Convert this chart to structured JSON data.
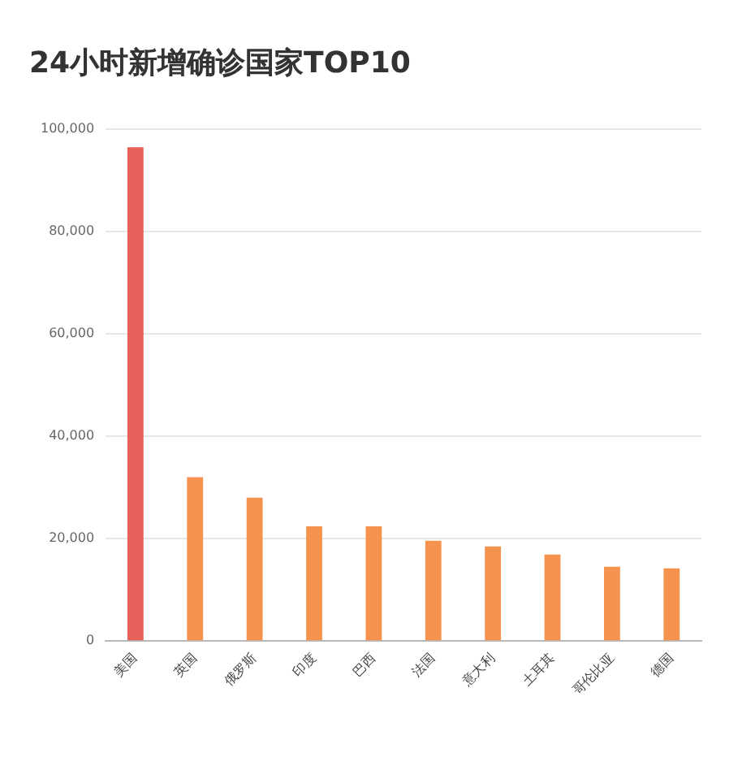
{
  "chart_data": {
    "type": "bar",
    "title": "24小时新增确诊国家TOP10",
    "categories": [
      "美国",
      "英国",
      "俄罗斯",
      "印度",
      "巴西",
      "法国",
      "意大利",
      "土耳其",
      "哥伦比亚",
      "德国"
    ],
    "values": [
      96500,
      32000,
      28000,
      22400,
      22400,
      19600,
      18500,
      16900,
      14500,
      14200
    ],
    "colors": [
      "#e8605a",
      "#f5924e",
      "#f5924e",
      "#f5924e",
      "#f5924e",
      "#f5924e",
      "#f5924e",
      "#f5924e",
      "#f5924e",
      "#f5924e"
    ],
    "ylim": [
      0,
      100000
    ],
    "yticks": [
      0,
      {
        "value": 20000,
        "label": "20,000"
      },
      {
        "value": 40000,
        "label": "40,000"
      },
      {
        "value": 60000,
        "label": "60,000"
      },
      {
        "value": 80000,
        "label": "80,000"
      },
      {
        "value": 100000,
        "label": "100,000"
      }
    ],
    "grid": "y"
  }
}
